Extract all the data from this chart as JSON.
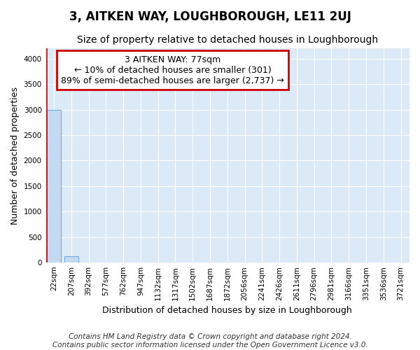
{
  "title": "3, AITKEN WAY, LOUGHBOROUGH, LE11 2UJ",
  "subtitle": "Size of property relative to detached houses in Loughborough",
  "xlabel": "Distribution of detached houses by size in Loughborough",
  "ylabel": "Number of detached properties",
  "footer_line1": "Contains HM Land Registry data © Crown copyright and database right 2024.",
  "footer_line2": "Contains public sector information licensed under the Open Government Licence v3.0.",
  "bar_labels": [
    "22sqm",
    "207sqm",
    "392sqm",
    "577sqm",
    "762sqm",
    "947sqm",
    "1132sqm",
    "1317sqm",
    "1502sqm",
    "1687sqm",
    "1872sqm",
    "2056sqm",
    "2241sqm",
    "2426sqm",
    "2611sqm",
    "2796sqm",
    "2981sqm",
    "3166sqm",
    "3351sqm",
    "3536sqm",
    "3721sqm"
  ],
  "bar_values": [
    3000,
    120,
    0,
    0,
    0,
    0,
    0,
    0,
    0,
    0,
    0,
    0,
    0,
    0,
    0,
    0,
    0,
    0,
    0,
    0,
    0
  ],
  "bar_color": "#c5d9f0",
  "bar_edge_color": "#6daee0",
  "annotation_text": "3 AITKEN WAY: 77sqm\n← 10% of detached houses are smaller (301)\n89% of semi-detached houses are larger (2,737) →",
  "annotation_box_color": "#ffffff",
  "annotation_border_color": "#cc0000",
  "property_line_color": "#cc0000",
  "property_line_x": 0,
  "ylim": [
    0,
    4200
  ],
  "yticks": [
    0,
    500,
    1000,
    1500,
    2000,
    2500,
    3000,
    3500,
    4000
  ],
  "fig_bg_color": "#ffffff",
  "plot_bg_color": "#dce9f7",
  "grid_color": "#ffffff",
  "title_fontsize": 12,
  "subtitle_fontsize": 10,
  "annotation_fontsize": 9,
  "ylabel_fontsize": 9,
  "xlabel_fontsize": 9,
  "footer_fontsize": 7.5,
  "tick_fontsize": 7.5
}
